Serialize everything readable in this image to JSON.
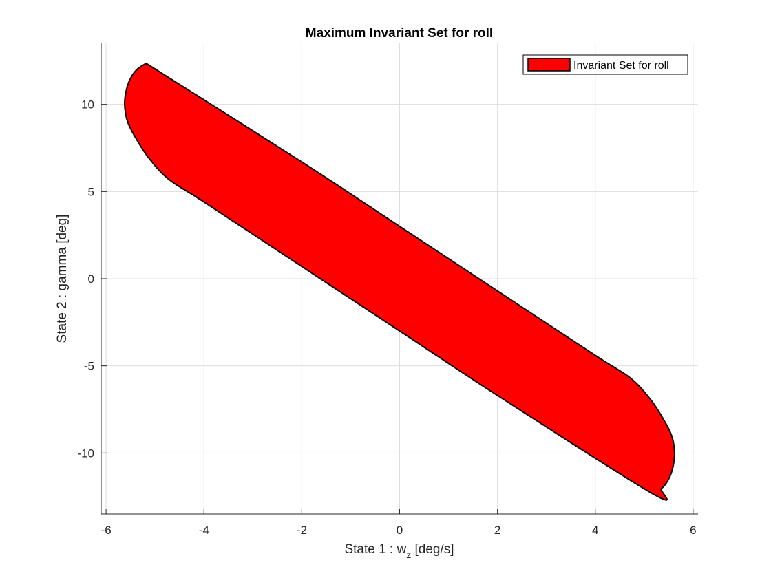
{
  "chart_data": {
    "type": "area",
    "title": "Maximum Invariant Set for roll",
    "xlabel": {
      "prefix": "State 1 : w",
      "subscript": "z",
      "suffix": " [deg/s]"
    },
    "ylabel": "State 2 : gamma [deg]",
    "xlim": [
      -6.1,
      6.1
    ],
    "ylim": [
      -13.5,
      13.5
    ],
    "xticks": [
      -6,
      -4,
      -2,
      0,
      2,
      4,
      6
    ],
    "yticks": [
      -10,
      -5,
      0,
      5,
      10
    ],
    "xtick_labels": [
      "-6",
      "-4",
      "-2",
      "0",
      "2",
      "4",
      "6"
    ],
    "ytick_labels": [
      "-10",
      "-5",
      "0",
      "5",
      "10"
    ],
    "grid": true,
    "legend": {
      "position": "top-right",
      "entries": [
        "Invariant Set for roll"
      ]
    },
    "series": [
      {
        "name": "Invariant Set for roll",
        "fill": "#ff0000",
        "edge": "#000000",
        "x": [
          -5.18,
          -2.0,
          0.0,
          2.0,
          4.0,
          4.72,
          5.12,
          5.38,
          5.56,
          5.62,
          5.58,
          5.48,
          5.35,
          5.18,
          2.0,
          0.0,
          -2.0,
          -4.0,
          -4.72,
          -5.12,
          -5.38,
          -5.56,
          -5.62,
          -5.58,
          -5.48,
          -5.35,
          -5.18
        ],
        "y": [
          12.35,
          6.7,
          3.0,
          -0.7,
          -4.4,
          -5.7,
          -6.9,
          -8.0,
          -9.0,
          -10.0,
          -10.9,
          -11.6,
          -12.05,
          -12.35,
          -6.7,
          -3.0,
          0.7,
          4.4,
          5.7,
          6.9,
          8.0,
          9.0,
          10.0,
          10.9,
          11.6,
          12.05,
          12.35
        ]
      }
    ]
  }
}
